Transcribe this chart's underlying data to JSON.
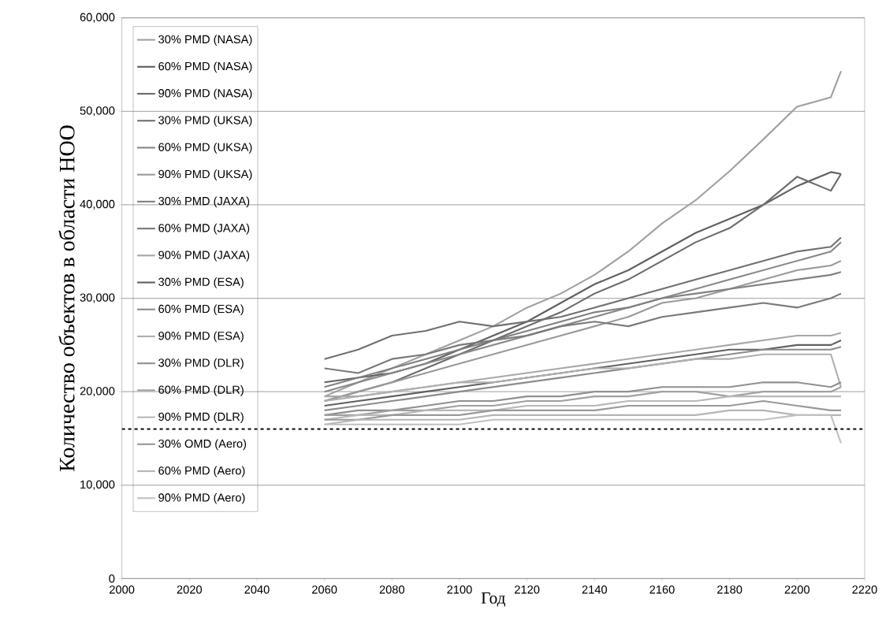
{
  "chart_data": {
    "type": "line",
    "xlabel": "Год",
    "ylabel": "Количество объектов в области НОО",
    "xlim": [
      2000,
      2220
    ],
    "ylim": [
      0,
      60000
    ],
    "xticks": [
      2000,
      2020,
      2040,
      2060,
      2080,
      2100,
      2120,
      2140,
      2160,
      2180,
      2200,
      2220
    ],
    "yticks": [
      {
        "value": 0,
        "label": "0"
      },
      {
        "value": 10000,
        "label": "10,000"
      },
      {
        "value": 20000,
        "label": "20,000"
      },
      {
        "value": 30000,
        "label": "30,000"
      },
      {
        "value": 40000,
        "label": "40,000"
      },
      {
        "value": 50000,
        "label": "50,000"
      },
      {
        "value": 60000,
        "label": "60,000"
      }
    ],
    "grid": "y",
    "legend": "top left",
    "x": [
      2060,
      2070,
      2080,
      2090,
      2100,
      2110,
      2120,
      2130,
      2140,
      2150,
      2160,
      2170,
      2180,
      2190,
      2200,
      2210,
      2213
    ],
    "ref_lines": [
      {
        "axis": "y",
        "value": 16000,
        "color": "#000000",
        "line_style": "dashed"
      }
    ],
    "series": [
      {
        "name": "30% PMD (NASA)",
        "color": "#a0a0a0",
        "values": [
          19500,
          21000,
          22500,
          24000,
          25500,
          27000,
          29000,
          30500,
          32500,
          35000,
          38000,
          40500,
          43600,
          47000,
          50500,
          51500,
          54300
        ]
      },
      {
        "name": "60% PMD (NASA)",
        "color": "#606060",
        "values": [
          21000,
          21500,
          22000,
          23000,
          24500,
          26000,
          27500,
          29500,
          31500,
          33000,
          35000,
          37000,
          38500,
          40000,
          42000,
          43500,
          43300
        ]
      },
      {
        "name": "90% PMD (NASA)",
        "color": "#6c6c6c",
        "values": [
          19000,
          20000,
          21000,
          22500,
          24000,
          25500,
          27000,
          28500,
          30500,
          32000,
          34000,
          36000,
          37500,
          40000,
          43000,
          41500,
          43300
        ]
      },
      {
        "name": "30% PMD (UKSA)",
        "color": "#707070",
        "values": [
          23500,
          24500,
          26000,
          26500,
          27500,
          27000,
          27500,
          28000,
          29000,
          30000,
          31000,
          32000,
          33000,
          34000,
          35000,
          35500,
          36500
        ]
      },
      {
        "name": "60% PMD (UKSA)",
        "color": "#888888",
        "values": [
          20000,
          21000,
          22000,
          23000,
          24000,
          25000,
          26000,
          27000,
          28000,
          29000,
          30000,
          31000,
          32000,
          33000,
          34000,
          35000,
          36000
        ]
      },
      {
        "name": "90% PMD (UKSA)",
        "color": "#999999",
        "values": [
          19000,
          20000,
          21000,
          22000,
          23000,
          24000,
          25000,
          26000,
          27000,
          28000,
          29500,
          30000,
          31000,
          32000,
          33000,
          33500,
          34000
        ]
      },
      {
        "name": "30% PMD (JAXA)",
        "color": "#808080",
        "values": [
          20500,
          21500,
          22500,
          23500,
          24500,
          25500,
          26500,
          27500,
          28500,
          29000,
          30000,
          30500,
          31000,
          31500,
          32000,
          32500,
          32800
        ]
      },
      {
        "name": "60% PMD (JAXA)",
        "color": "#7a7a7a",
        "values": [
          22500,
          22000,
          23500,
          24000,
          25000,
          25500,
          26000,
          27000,
          27500,
          27000,
          28000,
          28500,
          29000,
          29500,
          29000,
          30000,
          30500
        ]
      },
      {
        "name": "90% PMD (JAXA)",
        "color": "#a8a8a8",
        "values": [
          19500,
          19500,
          20000,
          20500,
          21000,
          21500,
          22000,
          22500,
          23000,
          23500,
          24000,
          24500,
          25000,
          25500,
          26000,
          26000,
          26300
        ]
      },
      {
        "name": "30% PMD (ESA)",
        "color": "#606060",
        "values": [
          18500,
          19000,
          19500,
          20000,
          20500,
          21000,
          21500,
          22000,
          22500,
          23000,
          23500,
          24000,
          24500,
          24500,
          25000,
          25000,
          25500
        ]
      },
      {
        "name": "60% PMD (ESA)",
        "color": "#8c8c8c",
        "values": [
          18000,
          18500,
          19000,
          19500,
          20000,
          20500,
          21000,
          21500,
          22000,
          22500,
          23000,
          23500,
          24000,
          24500,
          24500,
          24500,
          24800
        ]
      },
      {
        "name": "90% PMD (ESA)",
        "color": "#b0b0b0",
        "values": [
          19000,
          19500,
          20000,
          20500,
          21000,
          21000,
          21500,
          22000,
          22500,
          22500,
          23000,
          23500,
          23500,
          24000,
          24000,
          24000,
          20500
        ]
      },
      {
        "name": "30% PMD (DLR)",
        "color": "#909090",
        "values": [
          17500,
          18000,
          18000,
          18500,
          19000,
          19000,
          19500,
          19500,
          20000,
          20000,
          20500,
          20500,
          20500,
          21000,
          21000,
          20500,
          21000
        ]
      },
      {
        "name": "60% PMD (DLR)",
        "color": "#a0a0a0",
        "values": [
          17500,
          17500,
          18000,
          18000,
          18500,
          18500,
          19000,
          19000,
          19500,
          19500,
          20000,
          20000,
          19500,
          20000,
          20000,
          20000,
          20500
        ]
      },
      {
        "name": "90% PMD (DLR)",
        "color": "#b8b8b8",
        "values": [
          17000,
          17500,
          17500,
          18000,
          18000,
          18000,
          18500,
          18500,
          18500,
          19000,
          19000,
          19000,
          19500,
          19500,
          19500,
          19500,
          19500
        ]
      },
      {
        "name": "30% OMD (Aero)",
        "color": "#999999",
        "values": [
          17000,
          17000,
          17500,
          17500,
          17500,
          18000,
          18000,
          18000,
          18000,
          18500,
          18500,
          18500,
          18500,
          19000,
          18500,
          18000,
          18000
        ]
      },
      {
        "name": "60% PMD (Aero)",
        "color": "#b5b5b5",
        "values": [
          16500,
          17000,
          17000,
          17000,
          17000,
          17500,
          17500,
          17500,
          17500,
          17500,
          17500,
          17500,
          18000,
          18000,
          17500,
          17500,
          17500
        ]
      },
      {
        "name": "90% PMD (Aero)",
        "color": "#c0c0c0",
        "values": [
          16500,
          16500,
          16500,
          16500,
          16500,
          17000,
          17000,
          17000,
          17000,
          17000,
          17000,
          17000,
          17000,
          17000,
          17500,
          17500,
          14500
        ]
      }
    ]
  }
}
